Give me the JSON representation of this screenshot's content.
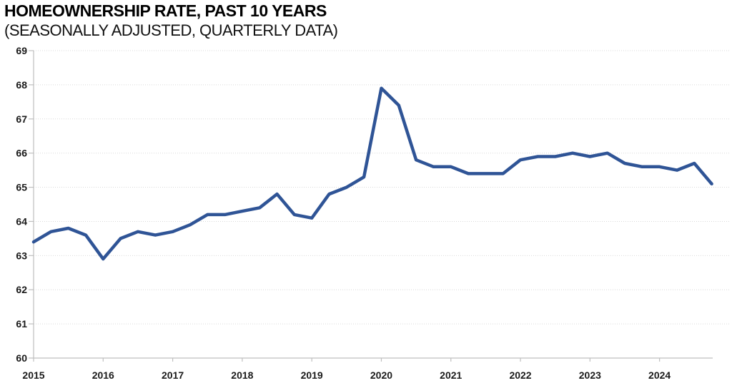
{
  "header": {
    "title": "HOMEOWNERSHIP RATE, PAST 10 YEARS",
    "subtitle": "(SEASONALLY ADJUSTED, QUARTERLY DATA)"
  },
  "chart_data": {
    "type": "line",
    "title": "HOMEOWNERSHIP RATE, PAST 10 YEARS",
    "subtitle": "(SEASONALLY ADJUSTED, QUARTERLY DATA)",
    "xlabel": "",
    "ylabel": "",
    "frequency": "quarterly",
    "x_tick_labels": [
      "2015",
      "2016",
      "2017",
      "2018",
      "2019",
      "2020",
      "2021",
      "2022",
      "2023",
      "2024"
    ],
    "y_tick_labels": [
      "69",
      "68",
      "67",
      "66",
      "65",
      "64",
      "63",
      "62",
      "61",
      "60"
    ],
    "ylim": [
      60,
      69
    ],
    "y_tick_step": 1,
    "grid": "horizontal-dotted",
    "legend": "none",
    "line_color": "#2F5496",
    "axis_color": "#BFBFBF",
    "gridline_color": "#D9D9D9",
    "label_color": "#1a1a1a",
    "series": [
      {
        "name": "Homeownership rate (%)",
        "values": [
          63.4,
          63.7,
          63.8,
          63.6,
          62.9,
          63.5,
          63.7,
          63.6,
          63.7,
          63.9,
          64.2,
          64.2,
          64.3,
          64.4,
          64.8,
          64.2,
          64.1,
          64.8,
          65.0,
          65.3,
          67.9,
          67.4,
          65.8,
          65.6,
          65.6,
          65.4,
          65.4,
          65.4,
          65.8,
          65.9,
          65.9,
          66.0,
          65.9,
          66.0,
          65.7,
          65.6,
          65.6,
          65.5,
          65.7,
          65.1
        ]
      }
    ]
  }
}
